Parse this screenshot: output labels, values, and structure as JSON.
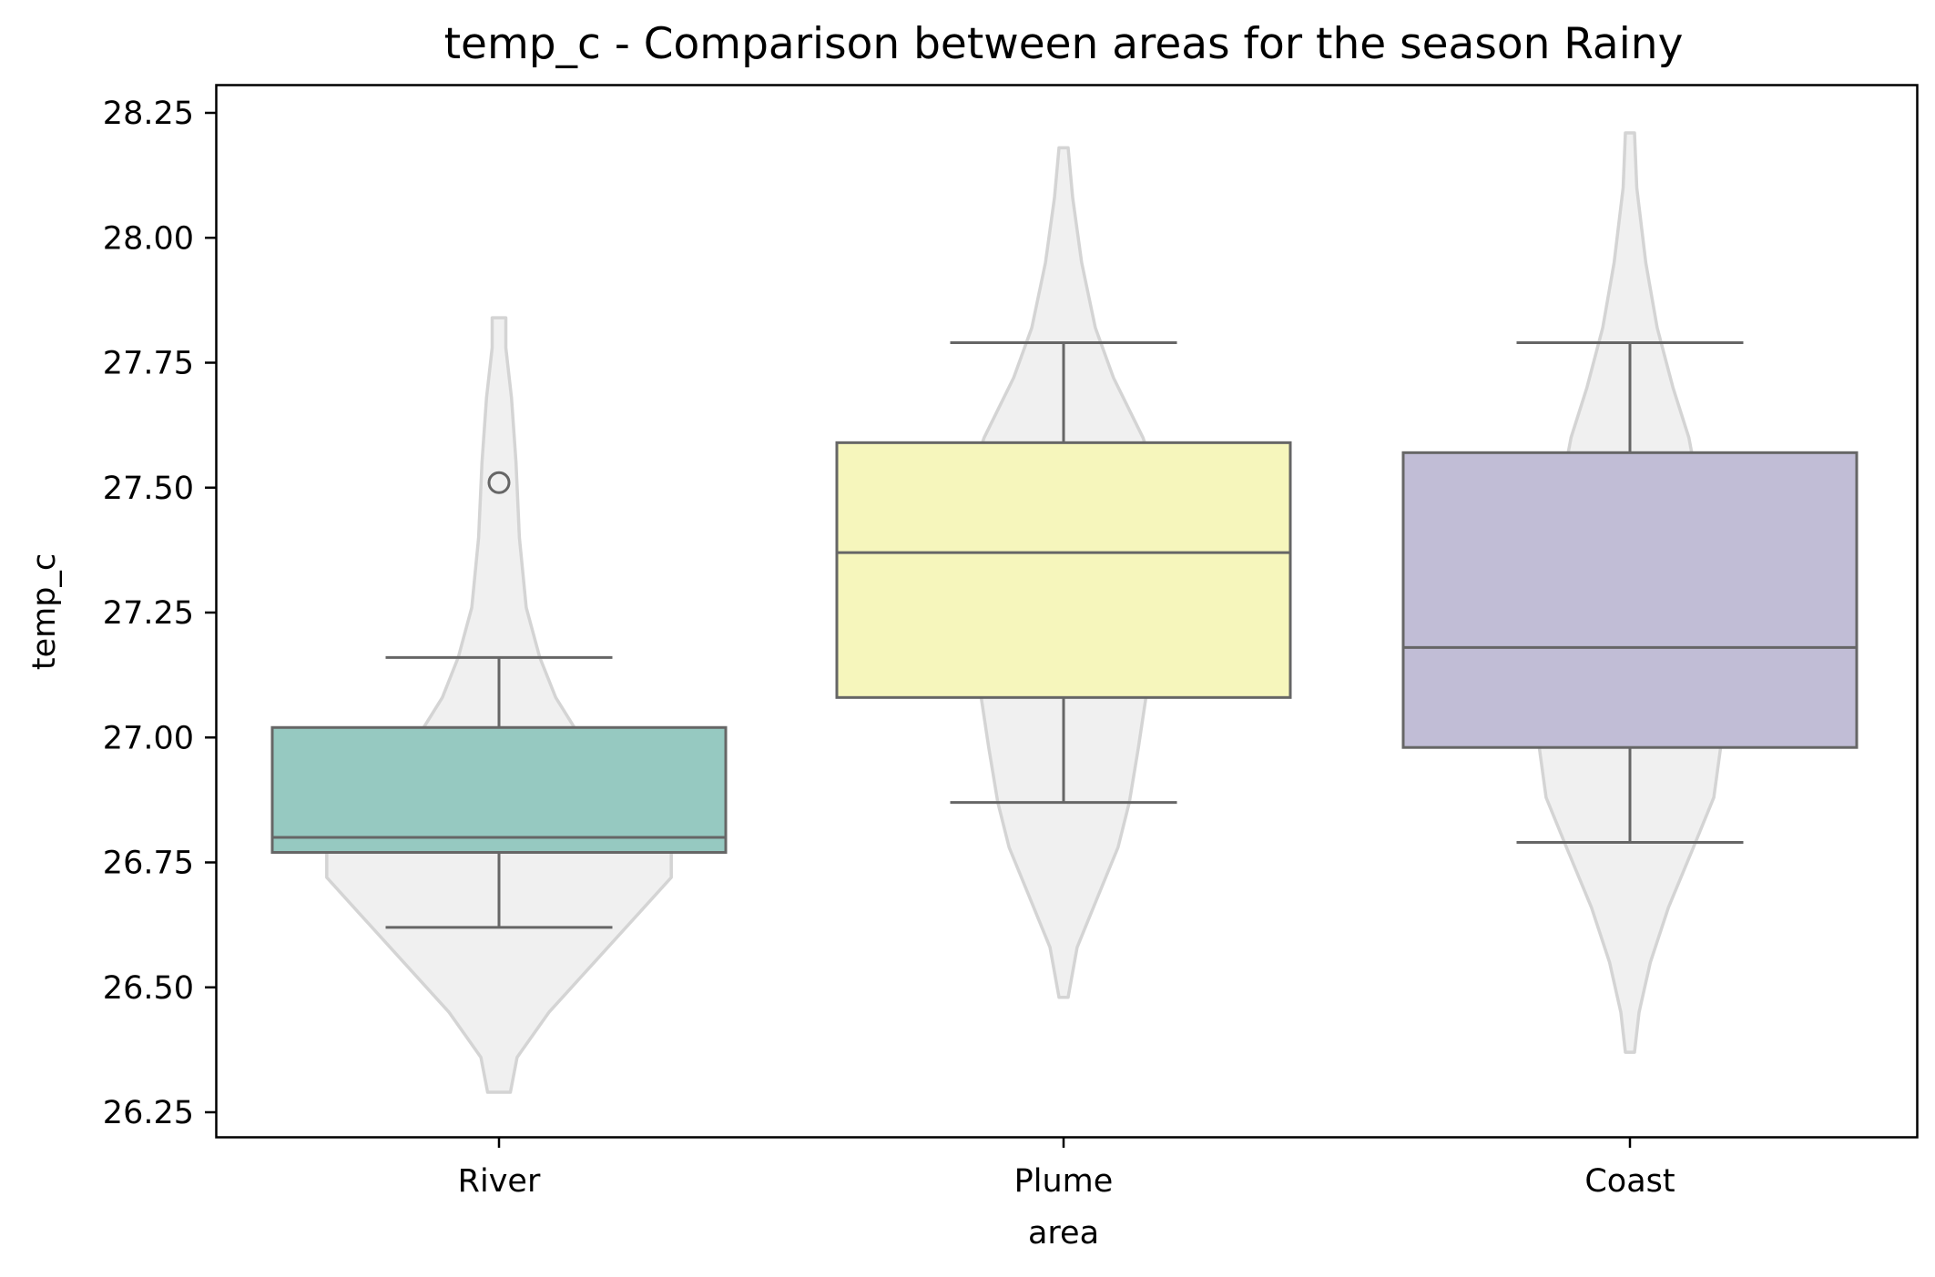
{
  "chart_data": {
    "type": "box",
    "title": "temp_c - Comparison between areas for the season Rainy",
    "xlabel": "area",
    "ylabel": "temp_c",
    "categories": [
      "River",
      "Plume",
      "Coast"
    ],
    "ylim": [
      26.2,
      28.31
    ],
    "yticks": [
      26.25,
      26.5,
      26.75,
      27.0,
      27.25,
      27.5,
      27.75,
      28.0,
      28.25
    ],
    "ytick_labels": [
      "26.25",
      "26.50",
      "26.75",
      "27.00",
      "27.25",
      "27.50",
      "27.75",
      "28.00",
      "28.25"
    ],
    "grid": false,
    "legend": "none",
    "boxes": [
      {
        "category": "River",
        "whisker_low": 26.62,
        "q1": 26.77,
        "median": 26.8,
        "q3": 27.02,
        "whisker_high": 27.16,
        "outliers": [
          27.51
        ],
        "color": "#96c9c1"
      },
      {
        "category": "Plume",
        "whisker_low": 26.87,
        "q1": 27.08,
        "median": 27.37,
        "q3": 27.59,
        "whisker_high": 27.79,
        "outliers": [],
        "color": "#f6f6bc"
      },
      {
        "category": "Coast",
        "whisker_low": 26.79,
        "q1": 26.98,
        "median": 27.18,
        "q3": 27.57,
        "whisker_high": 27.79,
        "outliers": [],
        "color": "#c1bdd6"
      }
    ],
    "violins": [
      {
        "category": "River",
        "y_min": 26.29,
        "y_max": 27.84,
        "profile": [
          [
            26.29,
            0.05
          ],
          [
            26.36,
            0.08
          ],
          [
            26.45,
            0.22
          ],
          [
            26.55,
            0.42
          ],
          [
            26.65,
            0.62
          ],
          [
            26.72,
            0.76
          ],
          [
            26.8,
            0.76
          ],
          [
            26.88,
            0.62
          ],
          [
            26.95,
            0.47
          ],
          [
            27.0,
            0.36
          ],
          [
            27.08,
            0.25
          ],
          [
            27.16,
            0.18
          ],
          [
            27.26,
            0.12
          ],
          [
            27.4,
            0.09
          ],
          [
            27.55,
            0.075
          ],
          [
            27.68,
            0.055
          ],
          [
            27.78,
            0.03
          ],
          [
            27.84,
            0.03
          ]
        ]
      },
      {
        "category": "Plume",
        "y_min": 26.48,
        "y_max": 28.18,
        "profile": [
          [
            26.48,
            0.02
          ],
          [
            26.58,
            0.06
          ],
          [
            26.68,
            0.15
          ],
          [
            26.78,
            0.24
          ],
          [
            26.87,
            0.29
          ],
          [
            26.98,
            0.33
          ],
          [
            27.1,
            0.37
          ],
          [
            27.22,
            0.41
          ],
          [
            27.35,
            0.45
          ],
          [
            27.48,
            0.44
          ],
          [
            27.6,
            0.35
          ],
          [
            27.72,
            0.22
          ],
          [
            27.82,
            0.14
          ],
          [
            27.95,
            0.08
          ],
          [
            28.08,
            0.04
          ],
          [
            28.18,
            0.02
          ]
        ]
      },
      {
        "category": "Coast",
        "y_min": 26.37,
        "y_max": 28.21,
        "profile": [
          [
            26.37,
            0.02
          ],
          [
            26.45,
            0.04
          ],
          [
            26.55,
            0.09
          ],
          [
            26.66,
            0.17
          ],
          [
            26.78,
            0.28
          ],
          [
            26.88,
            0.37
          ],
          [
            26.98,
            0.4
          ],
          [
            27.1,
            0.36
          ],
          [
            27.22,
            0.33
          ],
          [
            27.35,
            0.33
          ],
          [
            27.48,
            0.31
          ],
          [
            27.6,
            0.26
          ],
          [
            27.7,
            0.19
          ],
          [
            27.82,
            0.12
          ],
          [
            27.95,
            0.07
          ],
          [
            28.1,
            0.03
          ],
          [
            28.21,
            0.02
          ]
        ]
      }
    ],
    "colors": {
      "violin_fill": "#f0f0f0",
      "violin_edge": "#d4d4d4",
      "box_edge": "#666666",
      "axes": "#000000"
    }
  }
}
